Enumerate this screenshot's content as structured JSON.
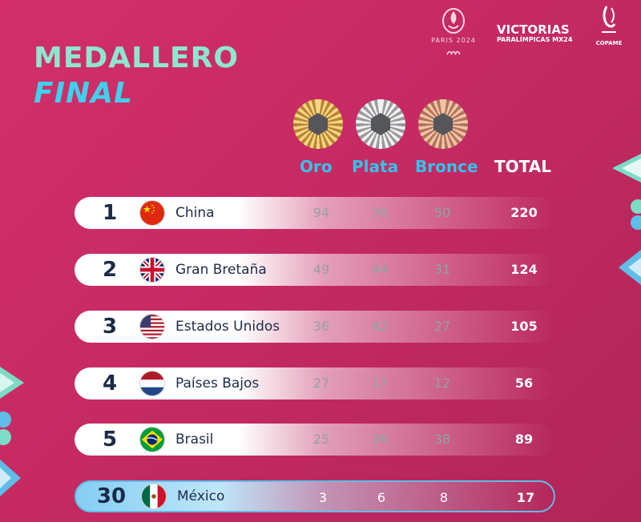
{
  "title": {
    "line1": "MEDALLERO",
    "line2": "FINAL"
  },
  "logos": {
    "paris": "PARIS 2024",
    "victorias_line1": "VICTORIAS",
    "victorias_line2": "PARALÍMPICAS MX24",
    "copame": "COPAME"
  },
  "headers": {
    "oro": "Oro",
    "plata": "Plata",
    "bronce": "Bronce",
    "total": "TOTAL"
  },
  "medals": [
    {
      "type": "oro",
      "icon": "gold-medal-icon",
      "color": "#c9a24a"
    },
    {
      "type": "plata",
      "icon": "silver-medal-icon",
      "color": "#bdbdbd"
    },
    {
      "type": "bronce",
      "icon": "bronze-medal-icon",
      "color": "#c98b6c"
    }
  ],
  "colors": {
    "background": "#c62a63",
    "title_line1": "#8fe6d0",
    "title_line2": "#3ed0ec",
    "header": "#36c2ea",
    "highlight_row": "#84cdf2"
  },
  "rows": [
    {
      "rank": "1",
      "country": "China",
      "flag": "china-flag-icon",
      "oro": "94",
      "plata": "76",
      "bronce": "50",
      "total": "220"
    },
    {
      "rank": "2",
      "country": "Gran Bretaña",
      "flag": "uk-flag-icon",
      "oro": "49",
      "plata": "44",
      "bronce": "31",
      "total": "124"
    },
    {
      "rank": "3",
      "country": "Estados Unidos",
      "flag": "usa-flag-icon",
      "oro": "36",
      "plata": "42",
      "bronce": "27",
      "total": "105"
    },
    {
      "rank": "4",
      "country": "Países Bajos",
      "flag": "netherlands-flag-icon",
      "oro": "27",
      "plata": "17",
      "bronce": "12",
      "total": "56"
    },
    {
      "rank": "5",
      "country": "Brasil",
      "flag": "brazil-flag-icon",
      "oro": "25",
      "plata": "26",
      "bronce": "38",
      "total": "89"
    },
    {
      "rank": "30",
      "country": "México",
      "flag": "mexico-flag-icon",
      "oro": "3",
      "plata": "6",
      "bronce": "8",
      "total": "17",
      "highlighted": true
    }
  ]
}
